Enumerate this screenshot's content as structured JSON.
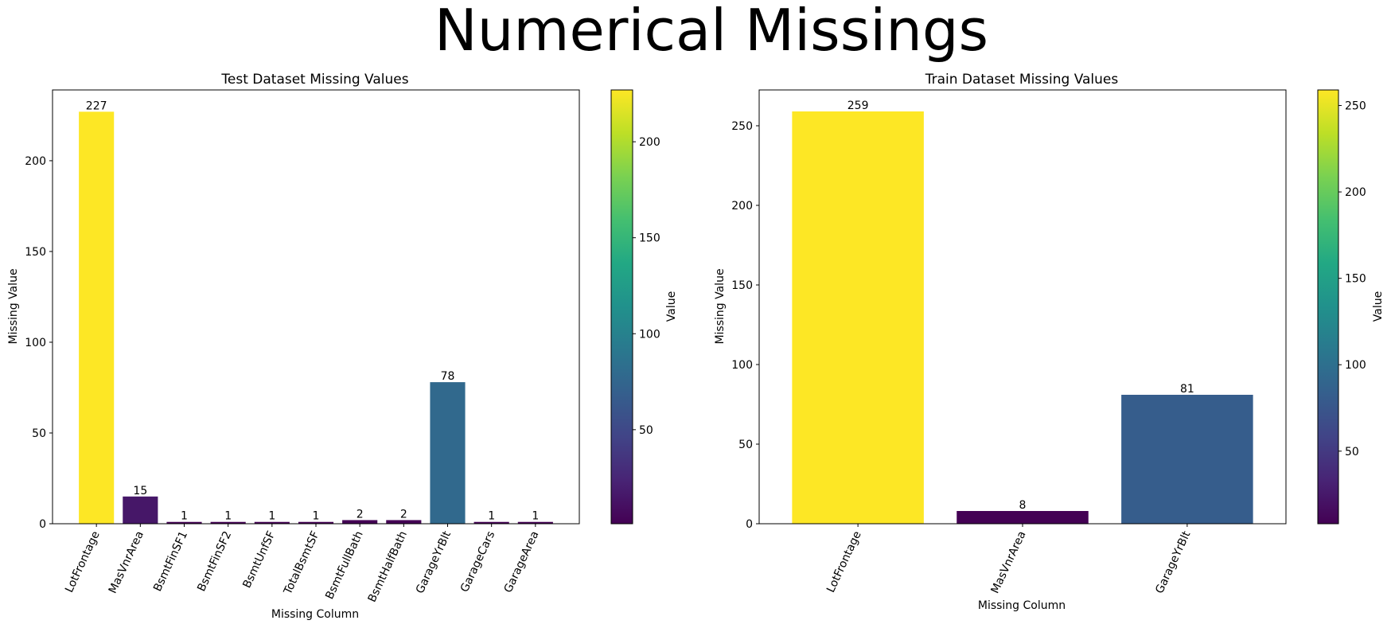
{
  "suptitle": "Numerical Missings",
  "chart_data": [
    {
      "type": "bar",
      "title": "Test Dataset Missing Values",
      "xlabel": "Missing Column",
      "ylabel": "Missing Value",
      "categories": [
        "LotFrontage",
        "MasVnrArea",
        "BsmtFinSF1",
        "BsmtFinSF2",
        "BsmtUnfSF",
        "TotalBsmtSF",
        "BsmtFullBath",
        "BsmtHalfBath",
        "GarageYrBlt",
        "GarageCars",
        "GarageArea"
      ],
      "values": [
        227,
        15,
        1,
        1,
        1,
        1,
        2,
        2,
        78,
        1,
        1
      ],
      "data_labels": [
        "227",
        "15",
        "1",
        "1",
        "1",
        "1",
        "2",
        "2",
        "78",
        "1",
        "1"
      ],
      "ylim": [
        0,
        239
      ],
      "yticks": [
        0,
        50,
        100,
        150,
        200
      ],
      "colorbar": {
        "label": "Value",
        "min": 1,
        "max": 227,
        "ticks": [
          50,
          100,
          150,
          200
        ],
        "colormap": "viridis"
      },
      "grid": false
    },
    {
      "type": "bar",
      "title": "Train Dataset Missing Values",
      "xlabel": "Missing Column",
      "ylabel": "Missing Value",
      "categories": [
        "LotFrontage",
        "MasVnrArea",
        "GarageYrBlt"
      ],
      "values": [
        259,
        8,
        81
      ],
      "data_labels": [
        "259",
        "8",
        "81"
      ],
      "ylim": [
        0,
        272.5
      ],
      "yticks": [
        0,
        50,
        100,
        150,
        200,
        250
      ],
      "colorbar": {
        "label": "Value",
        "min": 8,
        "max": 259,
        "ticks": [
          50,
          100,
          150,
          200,
          250
        ],
        "colormap": "viridis"
      },
      "grid": false
    }
  ]
}
